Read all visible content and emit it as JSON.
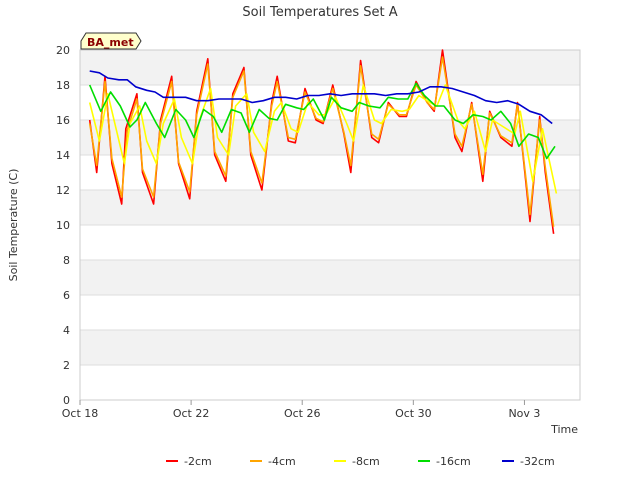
{
  "chart_data": {
    "type": "line",
    "title": "Soil Temperatures Set A",
    "xlabel": "Time",
    "ylabel": "Soil Temperature (C)",
    "ylim": [
      0,
      20
    ],
    "xlim": [
      0,
      18
    ],
    "x_tick_labels": [
      {
        "day": 0,
        "label": "Oct 18"
      },
      {
        "day": 4,
        "label": "Oct 22"
      },
      {
        "day": 8,
        "label": "Oct 26"
      },
      {
        "day": 12,
        "label": "Oct 30"
      },
      {
        "day": 16,
        "label": "Nov 3"
      }
    ],
    "y_ticks": [
      0,
      2,
      4,
      6,
      8,
      10,
      12,
      14,
      16,
      18,
      20
    ],
    "grid": true,
    "legend_position": "bottom",
    "badge": "BA_met",
    "colors": {
      "-2cm": "#ff0000",
      "-4cm": "#ffa500",
      "-8cm": "#ffff00",
      "-16cm": "#00dd00",
      "-32cm": "#0000cc",
      "band": "#f2f2f2",
      "grid": "#dddddd"
    },
    "series": [
      {
        "name": "-2cm",
        "x": [
          0.35,
          0.6,
          0.9,
          1.15,
          1.5,
          1.65,
          2.05,
          2.25,
          2.65,
          2.9,
          3.3,
          3.55,
          3.95,
          4.2,
          4.6,
          4.85,
          5.25,
          5.5,
          5.9,
          6.15,
          6.55,
          6.9,
          7.1,
          7.5,
          7.75,
          8.1,
          8.5,
          8.75,
          9.1,
          9.5,
          9.75,
          10.1,
          10.5,
          10.75,
          11.1,
          11.5,
          11.75,
          12.1,
          12.5,
          12.75,
          13.05,
          13.5,
          13.75,
          14.1,
          14.5,
          14.75,
          15.15,
          15.55,
          15.75,
          16.2,
          16.55,
          16.75,
          17.05
        ],
        "y": [
          16.0,
          13.0,
          18.5,
          13.5,
          11.2,
          15.5,
          17.5,
          13.0,
          11.2,
          16.0,
          18.5,
          13.5,
          11.5,
          16.5,
          19.5,
          14.0,
          12.5,
          17.5,
          19.0,
          14.0,
          12.0,
          17.0,
          18.5,
          14.8,
          14.7,
          17.8,
          16.0,
          15.8,
          18.0,
          15.2,
          13.0,
          19.4,
          15.0,
          14.7,
          17.0,
          16.2,
          16.2,
          18.2,
          17.0,
          16.5,
          20.0,
          15.0,
          14.2,
          17.0,
          12.5,
          16.5,
          15.0,
          14.5,
          17.0,
          10.2,
          16.2,
          13.0,
          9.5
        ]
      },
      {
        "name": "-4cm",
        "x": [
          0.35,
          0.6,
          0.9,
          1.15,
          1.5,
          1.7,
          2.05,
          2.25,
          2.65,
          2.9,
          3.3,
          3.55,
          3.95,
          4.2,
          4.6,
          4.85,
          5.25,
          5.5,
          5.9,
          6.15,
          6.55,
          6.9,
          7.1,
          7.5,
          7.75,
          8.1,
          8.5,
          8.75,
          9.1,
          9.5,
          9.75,
          10.1,
          10.5,
          10.75,
          11.1,
          11.5,
          11.75,
          12.1,
          12.5,
          12.75,
          13.05,
          13.5,
          13.75,
          14.1,
          14.5,
          14.75,
          15.15,
          15.55,
          15.75,
          16.2,
          16.55,
          16.75,
          17.05
        ],
        "y": [
          15.8,
          13.4,
          18.2,
          13.8,
          11.6,
          15.4,
          17.2,
          13.2,
          11.6,
          15.8,
          18.2,
          13.6,
          11.9,
          16.3,
          19.2,
          14.2,
          12.8,
          17.3,
          18.8,
          14.2,
          12.4,
          16.8,
          18.2,
          15.0,
          14.9,
          17.6,
          16.1,
          15.9,
          17.8,
          15.3,
          13.4,
          19.1,
          15.2,
          14.9,
          16.9,
          16.3,
          16.3,
          18.0,
          17.0,
          16.6,
          19.6,
          15.2,
          14.5,
          16.9,
          12.9,
          16.4,
          15.1,
          14.7,
          16.9,
          10.6,
          16.0,
          13.3,
          9.9
        ]
      },
      {
        "name": "-8cm",
        "x": [
          0.35,
          0.7,
          1.0,
          1.3,
          1.6,
          1.8,
          2.15,
          2.4,
          2.75,
          3.0,
          3.4,
          3.65,
          4.05,
          4.3,
          4.7,
          4.95,
          5.35,
          5.6,
          6.0,
          6.25,
          6.65,
          7.0,
          7.25,
          7.6,
          7.85,
          8.2,
          8.6,
          8.85,
          9.2,
          9.6,
          9.85,
          10.2,
          10.6,
          10.85,
          11.2,
          11.6,
          11.85,
          12.2,
          12.6,
          12.85,
          13.15,
          13.6,
          13.85,
          14.2,
          14.6,
          14.85,
          15.25,
          15.65,
          15.85,
          16.3,
          16.65,
          16.85,
          17.15
        ],
        "y": [
          17.0,
          14.8,
          17.5,
          15.5,
          13.5,
          15.8,
          16.8,
          14.8,
          13.5,
          15.8,
          17.2,
          15.0,
          13.5,
          16.0,
          17.8,
          15.0,
          14.0,
          16.8,
          17.5,
          15.3,
          14.2,
          16.5,
          17.0,
          15.5,
          15.3,
          17.0,
          16.3,
          16.3,
          17.3,
          15.8,
          14.8,
          18.0,
          16.0,
          15.8,
          16.6,
          16.5,
          16.6,
          17.4,
          17.0,
          16.8,
          18.0,
          16.0,
          15.5,
          16.5,
          14.2,
          16.0,
          15.6,
          15.2,
          16.5,
          12.5,
          15.5,
          14.0,
          11.8
        ]
      },
      {
        "name": "-16cm",
        "x": [
          0.35,
          0.75,
          1.1,
          1.45,
          1.8,
          2.05,
          2.35,
          2.75,
          3.05,
          3.45,
          3.8,
          4.1,
          4.45,
          4.8,
          5.1,
          5.45,
          5.8,
          6.1,
          6.45,
          6.8,
          7.1,
          7.4,
          7.8,
          8.05,
          8.4,
          8.8,
          9.05,
          9.4,
          9.8,
          10.05,
          10.4,
          10.8,
          11.1,
          11.45,
          11.8,
          12.1,
          12.4,
          12.8,
          13.1,
          13.5,
          13.8,
          14.15,
          14.5,
          14.8,
          15.15,
          15.5,
          15.8,
          16.15,
          16.5,
          16.8,
          17.1
        ],
        "y": [
          18.0,
          16.5,
          17.6,
          16.8,
          15.6,
          16.0,
          17.0,
          15.8,
          15.0,
          16.6,
          16.0,
          15.0,
          16.6,
          16.2,
          15.3,
          16.6,
          16.4,
          15.3,
          16.6,
          16.1,
          16.0,
          16.9,
          16.7,
          16.6,
          17.2,
          16.0,
          17.3,
          16.7,
          16.5,
          17.0,
          16.8,
          16.7,
          17.3,
          17.2,
          17.2,
          18.1,
          17.4,
          16.8,
          16.8,
          16.0,
          15.8,
          16.3,
          16.2,
          16.0,
          16.5,
          15.8,
          14.5,
          15.2,
          15.0,
          13.8,
          14.5
        ]
      },
      {
        "name": "-32cm",
        "x": [
          0.35,
          0.7,
          1.0,
          1.4,
          1.7,
          2.0,
          2.4,
          2.7,
          3.0,
          3.4,
          3.8,
          4.2,
          4.6,
          5.0,
          5.4,
          5.8,
          6.2,
          6.6,
          7.0,
          7.4,
          7.8,
          8.2,
          8.6,
          9.0,
          9.4,
          9.8,
          10.2,
          10.6,
          11.0,
          11.4,
          11.8,
          12.2,
          12.6,
          13.0,
          13.4,
          13.8,
          14.2,
          14.6,
          15.0,
          15.4,
          15.8,
          16.2,
          16.6,
          17.0
        ],
        "y": [
          18.8,
          18.7,
          18.4,
          18.3,
          18.3,
          17.9,
          17.7,
          17.6,
          17.3,
          17.3,
          17.3,
          17.1,
          17.1,
          17.2,
          17.2,
          17.2,
          17.0,
          17.1,
          17.3,
          17.3,
          17.2,
          17.4,
          17.4,
          17.5,
          17.4,
          17.5,
          17.5,
          17.5,
          17.4,
          17.5,
          17.5,
          17.6,
          17.9,
          17.9,
          17.8,
          17.6,
          17.4,
          17.1,
          17.0,
          17.1,
          16.9,
          16.5,
          16.3,
          15.8
        ]
      }
    ]
  }
}
